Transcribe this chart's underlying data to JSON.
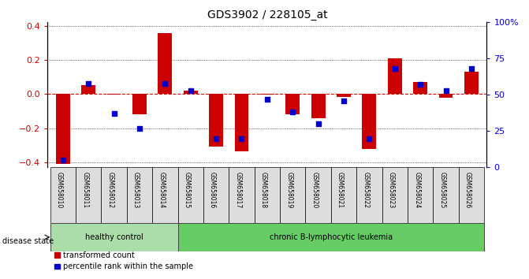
{
  "title": "GDS3902 / 228105_at",
  "samples": [
    "GSM658010",
    "GSM658011",
    "GSM658012",
    "GSM658013",
    "GSM658014",
    "GSM658015",
    "GSM658016",
    "GSM658017",
    "GSM658018",
    "GSM658019",
    "GSM658020",
    "GSM658021",
    "GSM658022",
    "GSM658023",
    "GSM658024",
    "GSM658025",
    "GSM658026"
  ],
  "red_bars": [
    -0.41,
    0.05,
    -0.005,
    -0.12,
    0.355,
    0.02,
    -0.31,
    -0.335,
    -0.005,
    -0.12,
    -0.14,
    -0.015,
    -0.32,
    0.21,
    0.07,
    -0.02,
    0.13
  ],
  "blue_pct": [
    5,
    58,
    37,
    27,
    58,
    53,
    20,
    20,
    47,
    38,
    30,
    46,
    20,
    68,
    57,
    53,
    68
  ],
  "ylim_left": [
    -0.43,
    0.42
  ],
  "ylim_right": [
    0,
    100
  ],
  "yticks_left": [
    -0.4,
    -0.2,
    0.0,
    0.2,
    0.4
  ],
  "yticks_right": [
    0,
    25,
    50,
    75,
    100
  ],
  "ytick_labels_right": [
    "0",
    "25",
    "50",
    "75",
    "100%"
  ],
  "healthy_count": 5,
  "healthy_label": "healthy control",
  "leukemia_label": "chronic B-lymphocytic leukemia",
  "disease_state_label": "disease state",
  "legend_red": "transformed count",
  "legend_blue": "percentile rank within the sample",
  "bar_color": "#cc0000",
  "blue_color": "#0000cc",
  "healthy_bg": "#aaddaa",
  "leukemia_bg": "#66cc66",
  "xtick_bg": "#dddddd",
  "bar_width": 0.55
}
